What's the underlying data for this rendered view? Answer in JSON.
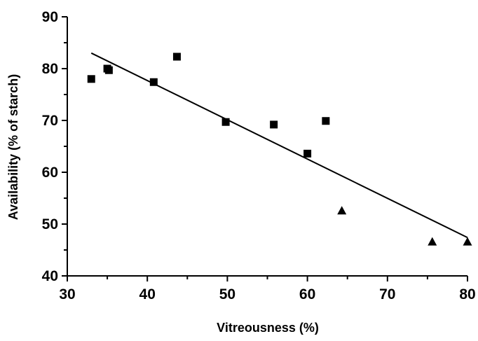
{
  "chart_data": {
    "type": "scatter",
    "title": "",
    "xlabel": "Vitreousness (%)",
    "ylabel": "Availability (% of starch)",
    "xlim": [
      30,
      80
    ],
    "ylim": [
      40,
      90
    ],
    "x_ticks": [
      "30",
      "40",
      "50",
      "60",
      "70",
      "80"
    ],
    "y_ticks": [
      "40",
      "50",
      "60",
      "70",
      "80",
      "90"
    ],
    "grid": false,
    "legend": "none",
    "series": [
      {
        "marker": "square",
        "points": [
          {
            "x": 33.0,
            "y": 78.0
          },
          {
            "x": 35.0,
            "y": 80.0
          },
          {
            "x": 35.2,
            "y": 79.7
          },
          {
            "x": 40.8,
            "y": 77.4
          },
          {
            "x": 43.7,
            "y": 82.3
          },
          {
            "x": 49.8,
            "y": 69.7
          },
          {
            "x": 55.8,
            "y": 69.2
          },
          {
            "x": 60.0,
            "y": 63.6
          },
          {
            "x": 62.3,
            "y": 69.9
          }
        ]
      },
      {
        "marker": "triangle",
        "points": [
          {
            "x": 64.3,
            "y": 52.6
          },
          {
            "x": 75.6,
            "y": 46.6
          },
          {
            "x": 80.0,
            "y": 46.6
          }
        ]
      }
    ],
    "trendline": {
      "x": [
        33.0,
        80.0
      ],
      "y": [
        83.0,
        47.4
      ]
    },
    "colors": {
      "marker": "#000000",
      "line": "#000000",
      "axis": "#000000"
    }
  }
}
